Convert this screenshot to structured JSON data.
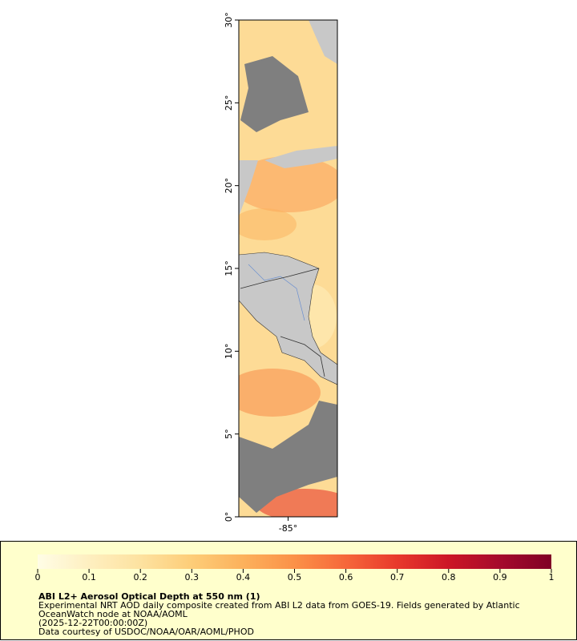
{
  "map": {
    "title": "ABI L2+ Aerosol Optical Depth at 550 nm (1)",
    "description": "Experimental NRT AOD daily composite created from ABI L2 data from GOES-19. Fields generated by Atlantic OceanWatch node at NOAA/AOML",
    "time": "(2025-12-22T00:00:00Z)",
    "credit": "Data courtesy of USDOC/NOAA/OAR/AOML/PHOD",
    "ylim": [
      0,
      30
    ],
    "yticks": [
      {
        "value": 0,
        "label": "0°"
      },
      {
        "value": 5,
        "label": "5°"
      },
      {
        "value": 10,
        "label": "10°"
      },
      {
        "value": 15,
        "label": "15°"
      },
      {
        "value": 20,
        "label": "20°"
      },
      {
        "value": 25,
        "label": "25°"
      },
      {
        "value": 30,
        "label": "30°"
      }
    ],
    "xlim": [
      -88,
      -82
    ],
    "xticks": [
      {
        "value": -85,
        "label": "-85°"
      }
    ],
    "colorbar": {
      "lim": [
        0,
        1
      ],
      "ticks": [
        0,
        0.1,
        0.2,
        0.3,
        0.4,
        0.5,
        0.6,
        0.7,
        0.8,
        0.9,
        1
      ],
      "colors": [
        "#fffde6",
        "#feefc0",
        "#fde2a0",
        "#fdcd78",
        "#fcb15c",
        "#fb9148",
        "#f6673a",
        "#e8392c",
        "#cc1626",
        "#a50a2c",
        "#800026"
      ]
    }
  }
}
